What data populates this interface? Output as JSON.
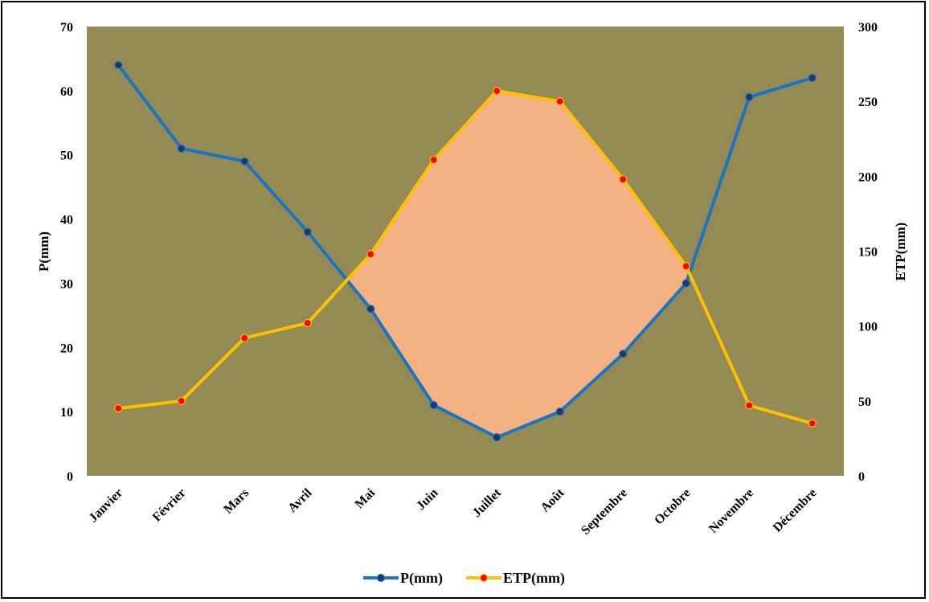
{
  "chart_data": {
    "type": "line",
    "categories": [
      "Janvier",
      "Février",
      "Mars",
      "Avril",
      "Mai",
      "Juin",
      "Juillet",
      "Août",
      "Septembre",
      "Octobre",
      "Novembre",
      "Décembre"
    ],
    "series": [
      {
        "name": "P(mm)",
        "axis": "left",
        "color": "#1874C4",
        "marker_color": "#1F3864",
        "values": [
          64,
          51,
          49,
          38,
          26,
          11,
          6,
          10,
          19,
          30,
          59,
          62
        ]
      },
      {
        "name": "ETP(mm)",
        "axis": "right",
        "color": "#FFC000",
        "marker_color": "#FF0000",
        "values": [
          45,
          50,
          92,
          102,
          148,
          211,
          257,
          250,
          198,
          140,
          47,
          35
        ]
      }
    ],
    "ylabel_left": "P(mm)",
    "ylabel_right": "ETP(mm)",
    "ylim_left": [
      0,
      70
    ],
    "yticks_left": [
      0,
      10,
      20,
      30,
      40,
      50,
      60,
      70
    ],
    "ylim_right": [
      0,
      300
    ],
    "yticks_right": [
      0,
      50,
      100,
      150,
      200,
      250,
      300
    ],
    "deficit_fill": {
      "from_category": "Mai",
      "to_category": "Octobre",
      "color": "#F4B183"
    },
    "plot_background": "#948A54",
    "grid": false,
    "legend": "bottom"
  }
}
